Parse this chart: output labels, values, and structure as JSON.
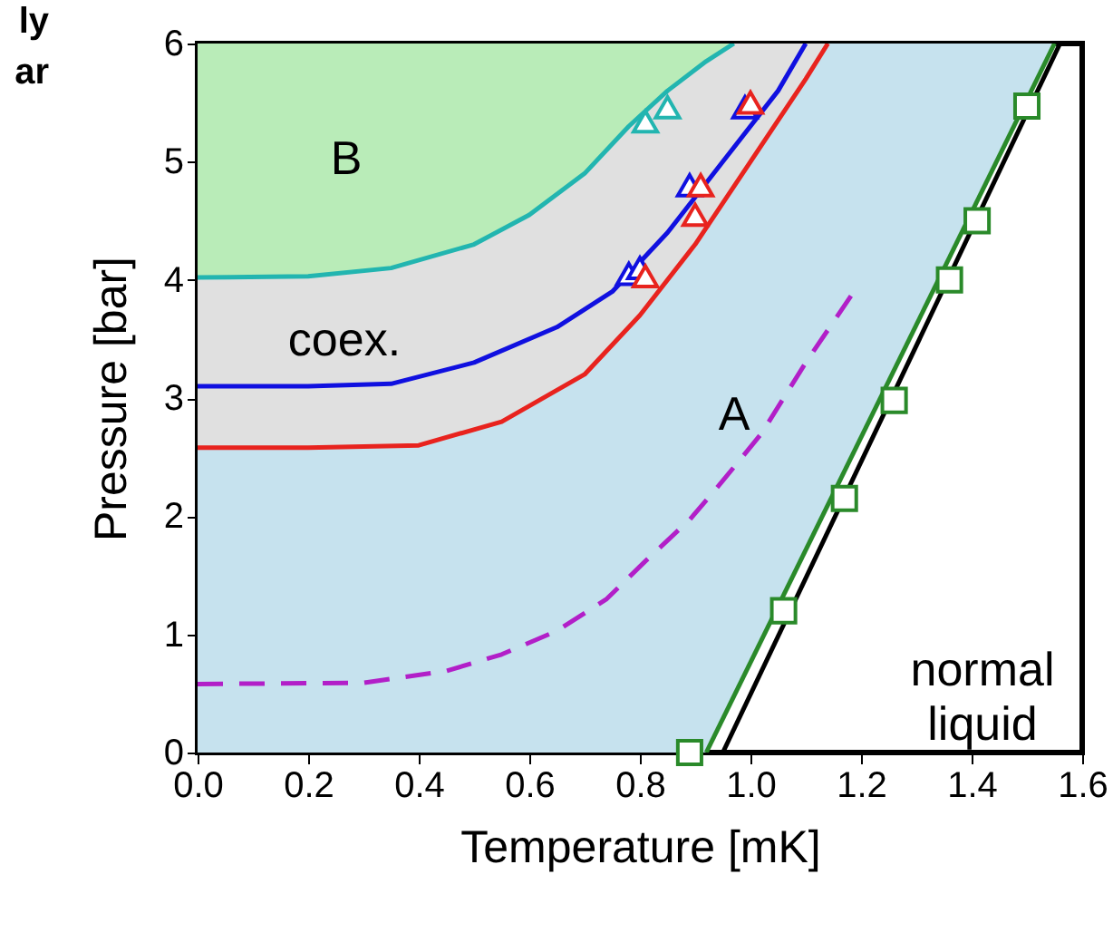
{
  "chart_data": {
    "type": "line",
    "xlabel": "Temperature [mK]",
    "ylabel": "Pressure [bar]",
    "xlim": [
      0,
      1.6
    ],
    "ylim": [
      0,
      6
    ],
    "xticks": [
      {
        "value": 0,
        "label": "0.0"
      },
      {
        "value": 0.2,
        "label": "0.2"
      },
      {
        "value": 0.4,
        "label": "0.4"
      },
      {
        "value": 0.6,
        "label": "0.6"
      },
      {
        "value": 0.8,
        "label": "0.8"
      },
      {
        "value": 1,
        "label": "1.0"
      },
      {
        "value": 1.2,
        "label": "1.2"
      },
      {
        "value": 1.4,
        "label": "1.4"
      },
      {
        "value": 1.6,
        "label": "1.6"
      }
    ],
    "yticks": [
      0,
      1,
      2,
      3,
      4,
      5,
      6
    ],
    "grid": false,
    "series": [
      {
        "type": "line",
        "color": "#22b5b0",
        "x": [
          0,
          0.2,
          0.35,
          0.5,
          0.6,
          0.7,
          0.78,
          0.85,
          0.92,
          0.97
        ],
        "values": [
          4.02,
          4.03,
          4.1,
          4.3,
          4.55,
          4.9,
          5.3,
          5.6,
          5.85,
          6.0
        ]
      },
      {
        "type": "line",
        "color": "#1010e0",
        "x": [
          0,
          0.2,
          0.35,
          0.5,
          0.65,
          0.75,
          0.85,
          0.95,
          1.05,
          1.1
        ],
        "values": [
          3.1,
          3.1,
          3.12,
          3.3,
          3.6,
          3.9,
          4.4,
          5.0,
          5.6,
          6.0
        ]
      },
      {
        "type": "line",
        "color": "#e8231e",
        "x": [
          0,
          0.2,
          0.4,
          0.55,
          0.7,
          0.8,
          0.9,
          1.0,
          1.1,
          1.14
        ],
        "values": [
          2.58,
          2.58,
          2.6,
          2.8,
          3.2,
          3.7,
          4.3,
          5.0,
          5.7,
          6.0
        ]
      },
      {
        "type": "line",
        "color": "#b21fc8",
        "line_style": "dashed",
        "x": [
          0,
          0.3,
          0.45,
          0.55,
          0.65,
          0.74,
          0.81,
          0.89,
          0.95,
          1.02,
          1.1,
          1.19
        ],
        "values": [
          0.58,
          0.59,
          0.69,
          0.83,
          1.03,
          1.3,
          1.62,
          1.97,
          2.3,
          2.7,
          3.3,
          3.92
        ]
      },
      {
        "type": "line",
        "color": "#000000",
        "x": [
          0.95,
          1.56
        ],
        "values": [
          0,
          6
        ]
      },
      {
        "type": "line",
        "color": "#2a8a2a",
        "x": [
          0.92,
          1.55
        ],
        "values": [
          0,
          6
        ]
      },
      {
        "type": "scatter",
        "color": "#22b5b0",
        "marker": "triangle",
        "x": [
          0.81,
          0.85
        ],
        "values": [
          5.34,
          5.46
        ]
      },
      {
        "type": "scatter",
        "color": "#1010e0",
        "marker": "triangle",
        "x": [
          0.78,
          0.8,
          0.89,
          0.99
        ],
        "values": [
          4.05,
          4.1,
          4.8,
          5.46
        ]
      },
      {
        "type": "scatter",
        "color": "#e8231e",
        "marker": "triangle",
        "x": [
          0.81,
          0.9,
          0.91,
          1.0
        ],
        "values": [
          4.03,
          4.55,
          4.8,
          5.5
        ]
      },
      {
        "type": "scatter",
        "color": "#2a8a2a",
        "marker": "square",
        "x": [
          0.89,
          1.06,
          1.17,
          1.26,
          1.36,
          1.41,
          1.5
        ],
        "values": [
          0,
          1.2,
          2.15,
          2.98,
          4.0,
          4.5,
          5.47
        ]
      }
    ],
    "annotations": [
      "B",
      "coex.",
      "A",
      "normal\nliquid",
      "ly",
      "ar"
    ]
  }
}
